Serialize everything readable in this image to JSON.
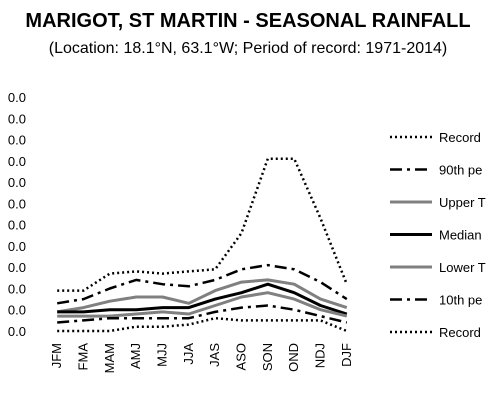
{
  "chart_data": {
    "type": "line",
    "title": "MARIGOT, ST MARTIN - SEASONAL RAINFALL",
    "subtitle": "(Location: 18.1°N, 63.1°W; Period of record: 1971-2014)",
    "categories": [
      "JFM",
      "FMA",
      "MAM",
      "AMJ",
      "MJJ",
      "JJA",
      "JAS",
      "ASO",
      "SON",
      "OND",
      "NDJ",
      "DJF"
    ],
    "y_tick_labels": [
      "0.0",
      "0.0",
      "0.0",
      "0.0",
      "0.0",
      "0.0",
      "0.0",
      "0.0",
      "0.0",
      "0.0",
      "0.0",
      "0.0"
    ],
    "ylim": [
      0,
      11
    ],
    "grid": false,
    "legend_placement": "right",
    "series": [
      {
        "name": "Record",
        "values": [
          1.9,
          1.9,
          2.7,
          2.8,
          2.7,
          2.8,
          2.9,
          4.6,
          8.1,
          8.1,
          5.3,
          2.2
        ],
        "color": "#000000",
        "style": "dotted"
      },
      {
        "name": "90th pe",
        "values": [
          1.3,
          1.5,
          2.0,
          2.4,
          2.2,
          2.1,
          2.4,
          2.9,
          3.1,
          2.9,
          2.3,
          1.5
        ],
        "color": "#000000",
        "style": "dashdot"
      },
      {
        "name": "Upper T",
        "values": [
          0.9,
          1.1,
          1.4,
          1.6,
          1.6,
          1.3,
          1.9,
          2.3,
          2.4,
          2.2,
          1.5,
          1.1
        ],
        "color": "#808080",
        "style": "solid"
      },
      {
        "name": "Median",
        "values": [
          0.9,
          0.9,
          1.0,
          1.0,
          1.1,
          1.1,
          1.5,
          1.8,
          2.2,
          1.8,
          1.2,
          0.8
        ],
        "color": "#000000",
        "style": "solid"
      },
      {
        "name": "Lower T",
        "values": [
          0.7,
          0.7,
          0.7,
          0.8,
          0.9,
          0.8,
          1.2,
          1.6,
          1.8,
          1.5,
          1.0,
          0.7
        ],
        "color": "#808080",
        "style": "solid"
      },
      {
        "name": "10th pe",
        "values": [
          0.4,
          0.5,
          0.6,
          0.6,
          0.6,
          0.6,
          0.9,
          1.1,
          1.2,
          1.0,
          0.7,
          0.4
        ],
        "color": "#000000",
        "style": "dashdot"
      },
      {
        "name": "Record",
        "values": [
          0.0,
          0.0,
          0.0,
          0.2,
          0.2,
          0.3,
          0.6,
          0.5,
          0.5,
          0.5,
          0.5,
          0.0
        ],
        "color": "#000000",
        "style": "dotted"
      }
    ]
  }
}
